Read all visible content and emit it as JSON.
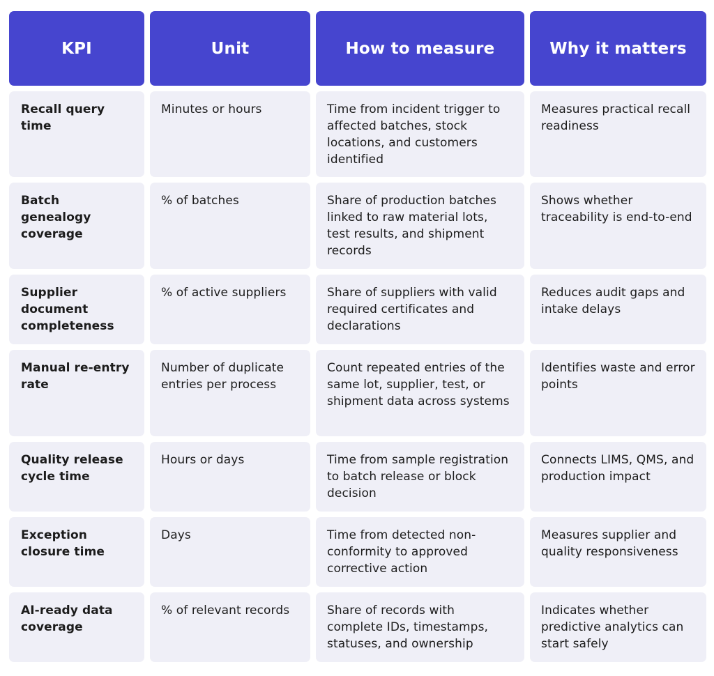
{
  "table": {
    "headers": [
      "KPI",
      "Unit",
      "How to measure",
      "Why it matters"
    ],
    "rows": [
      {
        "kpi": "Recall query time",
        "unit": "Minutes or hours",
        "how": "Time from incident trigger to affected batches, stock locations, and customers identified",
        "why": "Measures practical recall readiness"
      },
      {
        "kpi": "Batch genealogy coverage",
        "unit": "% of batches",
        "how": "Share of production batches linked to raw material lots, test results, and shipment records",
        "why": "Shows whether traceability is end-to-end"
      },
      {
        "kpi": "Supplier document completeness",
        "unit": "% of active suppliers",
        "how": "Share of suppliers with valid required certificates and declarations",
        "why": "Reduces audit gaps and intake delays"
      },
      {
        "kpi": "Manual re-entry rate",
        "unit": "Number of duplicate entries per process",
        "how": "Count repeated entries of the same lot, supplier, test, or shipment data across systems",
        "why": "Identifies waste and error points"
      },
      {
        "kpi": "Quality release cycle time",
        "unit": "Hours or days",
        "how": "Time from sample registration to batch release or block decision",
        "why": "Connects LIMS, QMS, and production impact"
      },
      {
        "kpi": "Exception closure time",
        "unit": "Days",
        "how": "Time from detected non-conformity to approved corrective action",
        "why": "Measures supplier and quality responsiveness"
      },
      {
        "kpi": "AI-ready data coverage",
        "unit": "% of relevant records",
        "how": "Share of records with complete IDs, timestamps, statuses, and ownership",
        "why": "Indicates whether predictive analytics can start safely"
      }
    ]
  }
}
